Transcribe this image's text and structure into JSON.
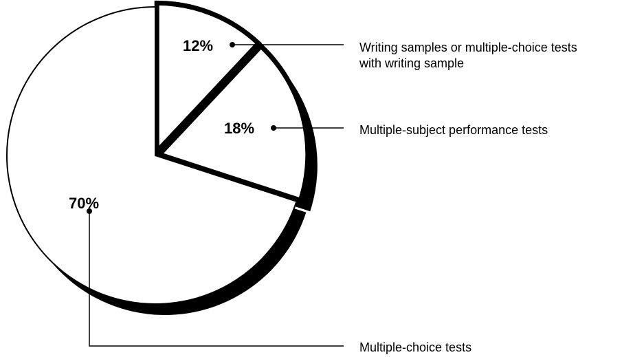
{
  "chart_data": {
    "type": "pie",
    "categories": [
      "Writing samples or multiple-choice tests with writing sample",
      "Multiple-subject performance tests",
      "Multiple-choice tests"
    ],
    "values": [
      12,
      18,
      70
    ],
    "value_labels": [
      "12%",
      "18%",
      "70%"
    ],
    "color": "#ffffff"
  }
}
